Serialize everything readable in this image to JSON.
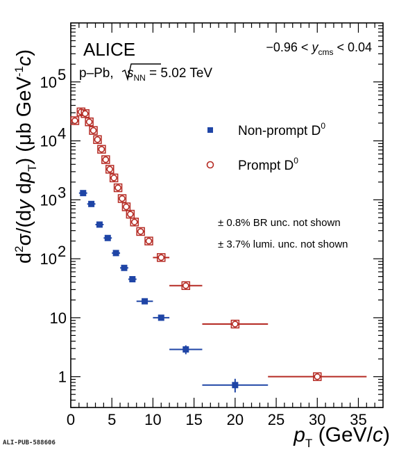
{
  "chart_data": {
    "type": "scatter",
    "log_y": true,
    "xlim": [
      0,
      38
    ],
    "ylim": [
      0.3,
      1000000
    ],
    "x_ticks": [
      "0",
      "5",
      "10",
      "15",
      "20",
      "25",
      "30",
      "35"
    ],
    "y_tick_labels": {
      "1": "1",
      "10": "10",
      "100": "10",
      "1000": "10",
      "10000": "10",
      "100000": "10"
    },
    "y_tick_exponents": {
      "100": "2",
      "1000": "3",
      "10000": "4",
      "100000": "5"
    },
    "xlabel": {
      "var": "p",
      "sub": "T",
      "unit": " (GeV/",
      "unit_var": "c",
      "close": ")"
    },
    "ylabel": {
      "p1": "d",
      "p1sup": "2",
      "p2": "σ/(d",
      "p3": "y",
      "p4": " d",
      "p5": "p",
      "p5sub": "T",
      "p6": ")  (μb GeV",
      "p6sup": "-1",
      "p7": "c",
      "p8": ")"
    },
    "experiment": "ALICE",
    "system": {
      "pre": "p–Pb, ",
      "sqrt_arg": "s",
      "sqrt_sub": "NN",
      "post": " = 5.02 TeV"
    },
    "rapidity": {
      "pre": "−0.96 < ",
      "var": "y",
      "sub": "cms",
      "post": " < 0.04"
    },
    "notes": [
      "± 0.8% BR unc. not shown",
      "± 3.7% lumi. unc. not shown"
    ],
    "legend_position": "right-middle",
    "series": [
      {
        "name": "Non-prompt D",
        "name_sup": "0",
        "color": "#1f45a6",
        "marker": "filled-square",
        "points": [
          {
            "x": 1.5,
            "xlo": 1,
            "xhi": 2,
            "y": 1300
          },
          {
            "x": 2.5,
            "xlo": 2,
            "xhi": 3,
            "y": 850
          },
          {
            "x": 3.5,
            "xlo": 3,
            "xhi": 4,
            "y": 380
          },
          {
            "x": 4.5,
            "xlo": 4,
            "xhi": 5,
            "y": 225
          },
          {
            "x": 5.5,
            "xlo": 5,
            "xhi": 6,
            "y": 125
          },
          {
            "x": 6.5,
            "xlo": 6,
            "xhi": 7,
            "y": 70
          },
          {
            "x": 7.5,
            "xlo": 7,
            "xhi": 8,
            "y": 45
          },
          {
            "x": 9,
            "xlo": 8,
            "xhi": 10,
            "y": 19
          },
          {
            "x": 11,
            "xlo": 10,
            "xhi": 12,
            "y": 10
          },
          {
            "x": 14,
            "xlo": 12,
            "xhi": 16,
            "y": 2.9,
            "ylo": 2.4,
            "yhi": 3.4
          },
          {
            "x": 20,
            "xlo": 16,
            "xhi": 24,
            "y": 0.72,
            "ylo": 0.54,
            "yhi": 0.92
          }
        ]
      },
      {
        "name": "Prompt D",
        "name_sup": "0",
        "color": "#b52a23",
        "marker": "open-circle",
        "points": [
          {
            "x": 0.5,
            "xlo": 0,
            "xhi": 1,
            "y": 22000
          },
          {
            "x": 1.25,
            "xlo": 1,
            "xhi": 1.5,
            "y": 31000
          },
          {
            "x": 1.75,
            "xlo": 1.5,
            "xhi": 2,
            "y": 29000
          },
          {
            "x": 2.25,
            "xlo": 2,
            "xhi": 2.5,
            "y": 21000
          },
          {
            "x": 2.75,
            "xlo": 2.5,
            "xhi": 3,
            "y": 15000
          },
          {
            "x": 3.25,
            "xlo": 3,
            "xhi": 3.5,
            "y": 10500
          },
          {
            "x": 3.75,
            "xlo": 3.5,
            "xhi": 4,
            "y": 7200
          },
          {
            "x": 4.25,
            "xlo": 4,
            "xhi": 4.5,
            "y": 4800
          },
          {
            "x": 4.75,
            "xlo": 4.5,
            "xhi": 5,
            "y": 3300
          },
          {
            "x": 5.25,
            "xlo": 5,
            "xhi": 5.5,
            "y": 2350
          },
          {
            "x": 5.75,
            "xlo": 5.5,
            "xhi": 6,
            "y": 1600
          },
          {
            "x": 6.25,
            "xlo": 6,
            "xhi": 6.5,
            "y": 1050
          },
          {
            "x": 6.75,
            "xlo": 6.5,
            "xhi": 7,
            "y": 760
          },
          {
            "x": 7.25,
            "xlo": 7,
            "xhi": 7.5,
            "y": 570
          },
          {
            "x": 7.75,
            "xlo": 7.5,
            "xhi": 8,
            "y": 420
          },
          {
            "x": 8.5,
            "xlo": 8,
            "xhi": 9,
            "y": 290
          },
          {
            "x": 9.5,
            "xlo": 9,
            "xhi": 10,
            "y": 200
          },
          {
            "x": 11,
            "xlo": 10,
            "xhi": 12,
            "y": 105
          },
          {
            "x": 14,
            "xlo": 12,
            "xhi": 16,
            "y": 35
          },
          {
            "x": 20,
            "xlo": 16,
            "xhi": 24,
            "y": 7.8
          },
          {
            "x": 30,
            "xlo": 24,
            "xhi": 36,
            "y": 1.0
          }
        ]
      }
    ]
  },
  "footer": {
    "id": "ALI-PUB-588606"
  }
}
